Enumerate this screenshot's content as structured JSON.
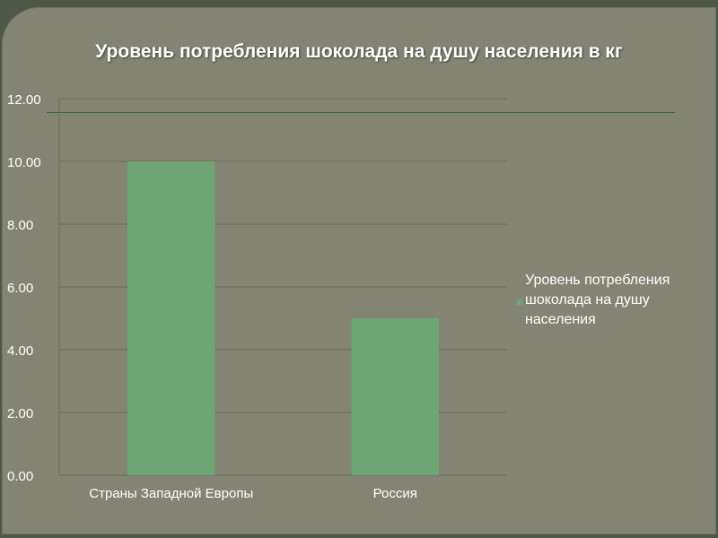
{
  "chart_data": {
    "type": "bar",
    "title": "Уровень потребления шоколада на душу населения в кг",
    "categories": [
      "Страны Западной Европы",
      "Россия"
    ],
    "series": [
      {
        "name": "Уровень потребления шоколада на душу населения",
        "values": [
          10,
          5
        ]
      }
    ],
    "yticks": [
      "0.00",
      "2.00",
      "4.00",
      "6.00",
      "8.00",
      "10.00",
      "12.00"
    ],
    "ylim": [
      0,
      12
    ],
    "grid": true,
    "legend_position": "right",
    "bar_color": "#6ea575",
    "gridline_color": "#6b6b60"
  }
}
